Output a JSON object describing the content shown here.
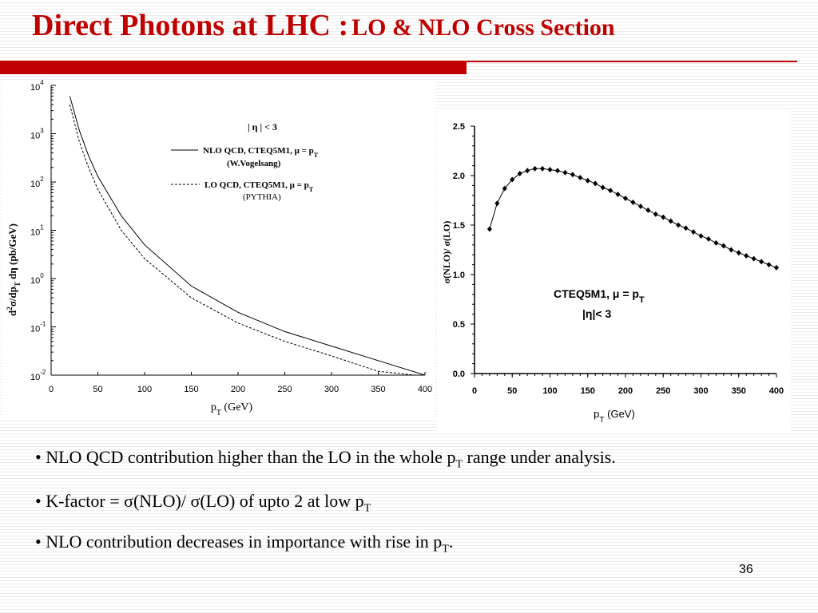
{
  "slide": {
    "title_main": "Direct Photons at LHC :",
    "title_sub": "LO & NLO Cross Section",
    "page_number": "36",
    "accent_color": "#c00000"
  },
  "bullets": [
    {
      "bullet": "•",
      "pre": "NLO QCD contribution higher than the LO in the whole p",
      "sub": "T",
      "post": " range under analysis."
    },
    {
      "bullet": "•",
      "pre": "K-factor = σ(NLO)/ σ(LO) of upto 2 at low p",
      "sub": "T",
      "post": ""
    },
    {
      "bullet": "•",
      "pre": "NLO contribution decreases in importance with rise in p",
      "sub": "T",
      "post": "."
    }
  ],
  "chart_data": [
    {
      "type": "line",
      "log_y": true,
      "xlim": [
        0,
        400
      ],
      "ylim": [
        0.01,
        10000
      ],
      "xticks": [
        "0",
        "50",
        "100",
        "150",
        "200",
        "250",
        "300",
        "350",
        "400"
      ],
      "yticks": [
        {
          "base": "10",
          "exp": "4"
        },
        {
          "base": "10",
          "exp": "3"
        },
        {
          "base": "10",
          "exp": "2"
        },
        {
          "base": "10",
          "exp": "1"
        },
        {
          "base": "10",
          "exp": "0"
        },
        {
          "base": "10",
          "exp": "-1"
        },
        {
          "base": "10",
          "exp": "-2"
        }
      ],
      "xlabel": {
        "pre": "p",
        "sub": "T",
        "post": " (GeV)"
      },
      "ylabel": {
        "a": "d",
        "a_sup": "2",
        "b": "σ/dp",
        "b_sub": "T",
        "c": " dη (pb/GeV)"
      },
      "legend": {
        "region": "| η | < 3",
        "nlo_line1": "NLO QCD, CTEQ5M1, μ = p",
        "nlo_line1_sub": "T",
        "nlo_line2": "(W.Vogelsang)",
        "lo_line1": "LO QCD, CTEQ5M1, μ = p",
        "lo_line1_sub": "T",
        "lo_line2": "(PYTHIA)"
      },
      "series": [
        {
          "name": "NLO QCD, CTEQ5M1, μ = pT",
          "style": "solid",
          "x": [
            20,
            30,
            40,
            50,
            75,
            100,
            150,
            200,
            250,
            300,
            350,
            400
          ],
          "y": [
            6000,
            1200,
            350,
            130,
            20,
            5,
            0.7,
            0.2,
            0.08,
            0.04,
            0.02,
            0.01
          ]
        },
        {
          "name": "LO QCD, CTEQ5M1, μ = pT",
          "style": "dashed",
          "x": [
            20,
            30,
            40,
            50,
            75,
            100,
            150,
            200,
            250,
            300,
            350,
            390
          ],
          "y": [
            4000,
            700,
            200,
            70,
            10,
            2.6,
            0.4,
            0.12,
            0.05,
            0.025,
            0.012,
            0.01
          ]
        }
      ]
    },
    {
      "type": "scatter",
      "xlim": [
        0,
        400
      ],
      "ylim": [
        0,
        2.5
      ],
      "xticks": [
        "0",
        "50",
        "100",
        "150",
        "200",
        "250",
        "300",
        "350",
        "400"
      ],
      "yticks": [
        "0.0",
        "0.5",
        "1.0",
        "1.5",
        "2.0",
        "2.5"
      ],
      "xlabel": {
        "pre": "p",
        "sub": "T",
        "post": " (GeV)"
      },
      "ylabel": "σ(NLO)/ σ(LO)",
      "annotation": {
        "line1": "CTEQ5M1, μ = p",
        "line1_sub": "T",
        "line2": "|η|< 3"
      },
      "series": [
        {
          "name": "K-factor",
          "x": [
            20,
            30,
            40,
            50,
            60,
            70,
            80,
            90,
            100,
            110,
            120,
            130,
            140,
            150,
            160,
            170,
            180,
            190,
            200,
            210,
            220,
            230,
            240,
            250,
            260,
            270,
            280,
            290,
            300,
            310,
            320,
            330,
            340,
            350,
            360,
            370,
            380,
            390,
            400
          ],
          "y": [
            1.46,
            1.72,
            1.87,
            1.96,
            2.02,
            2.05,
            2.07,
            2.07,
            2.06,
            2.05,
            2.03,
            2.01,
            1.98,
            1.95,
            1.92,
            1.88,
            1.85,
            1.81,
            1.77,
            1.73,
            1.69,
            1.65,
            1.61,
            1.58,
            1.54,
            1.5,
            1.47,
            1.43,
            1.39,
            1.36,
            1.32,
            1.29,
            1.25,
            1.22,
            1.19,
            1.16,
            1.13,
            1.1,
            1.07
          ]
        }
      ]
    }
  ]
}
